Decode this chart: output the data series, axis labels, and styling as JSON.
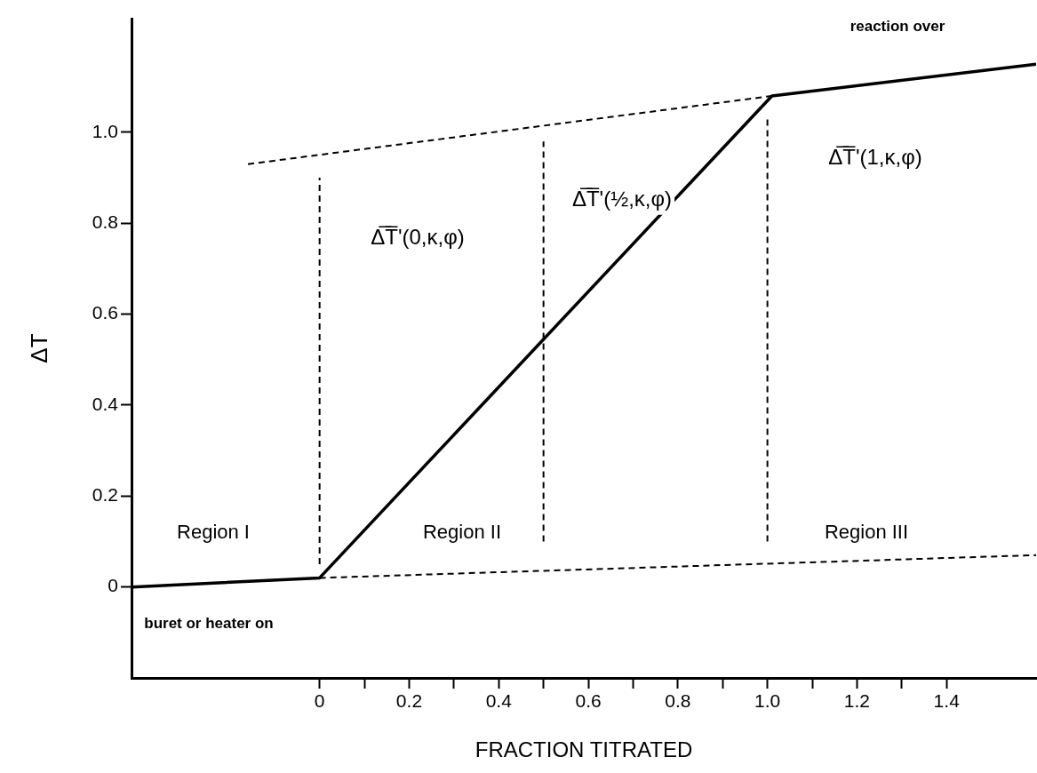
{
  "chart_data": {
    "type": "line",
    "xlabel": "FRACTION TITRATED",
    "ylabel": "ΔT",
    "xlim": [
      -0.42,
      1.6
    ],
    "ylim": [
      -0.2,
      1.25
    ],
    "xticks": [
      0,
      {
        "value": 0.1,
        "label": null
      },
      0.2,
      {
        "value": 0.3,
        "label": null
      },
      0.4,
      {
        "value": 0.5,
        "label": null
      },
      0.6,
      {
        "value": 0.7,
        "label": null
      },
      0.8,
      {
        "value": 0.9,
        "label": null
      },
      {
        "value": 1,
        "label": "1.0"
      },
      {
        "value": 1.1,
        "label": null
      },
      1.2,
      {
        "value": 1.3,
        "label": null
      },
      1.4
    ],
    "yticks": [
      0,
      0.2,
      0.4,
      0.6,
      0.8,
      {
        "value": 1,
        "label": "1.0"
      }
    ],
    "grid": false,
    "legend": false,
    "marker": "none",
    "series": [
      {
        "color": "#000000",
        "line_style": "solid",
        "x": [
          -0.42,
          0,
          1.01,
          1.6
        ],
        "values": [
          0,
          0.02,
          1.08,
          1.15
        ]
      },
      {
        "color": "#000000",
        "line_style": "dashed",
        "x": [
          0,
          1.6
        ],
        "values": [
          0.02,
          0.07
        ]
      },
      {
        "color": "#000000",
        "line_style": "dashed",
        "x": [
          -0.16,
          1.01
        ],
        "values": [
          0.93,
          1.08
        ]
      },
      {
        "color": "#000000",
        "line_style": "dashed",
        "x": [
          0,
          0
        ],
        "values": [
          0.05,
          0.9
        ]
      },
      {
        "color": "#000000",
        "line_style": "dashed",
        "x": [
          0.5,
          0.5
        ],
        "values": [
          0.1,
          0.98
        ]
      },
      {
        "color": "#000000",
        "line_style": "dashed",
        "x": [
          1.0,
          1.0
        ],
        "values": [
          0.1,
          1.03
        ]
      }
    ],
    "annotations": [
      "reaction over",
      "Δ̅T̅'(0,κ,φ)",
      "Δ̅T̅'(½,κ,φ)",
      "Δ̅T̅'(1,κ,φ)",
      "Region I",
      "Region II",
      "Region III",
      "buret or heater on"
    ]
  }
}
